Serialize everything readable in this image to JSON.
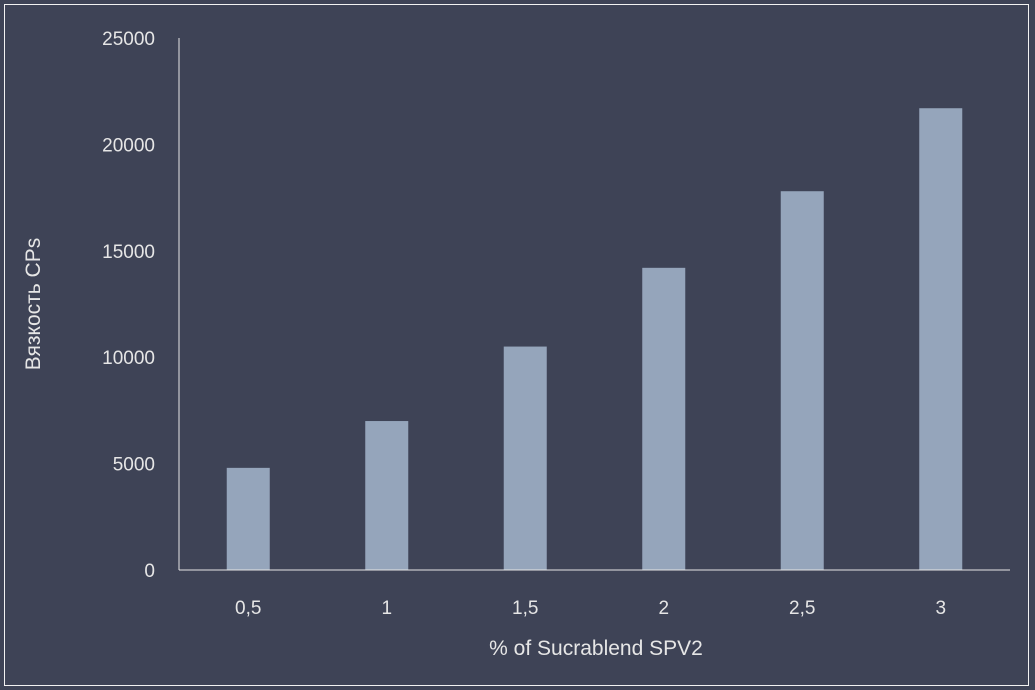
{
  "chart_data": {
    "type": "bar",
    "title": "",
    "categories": [
      "0,5",
      "1",
      "1,5",
      "2",
      "2,5",
      "3"
    ],
    "values": [
      4800,
      7000,
      10500,
      14200,
      17800,
      21700
    ],
    "xlabel": "% of Sucrablend SPV2",
    "ylabel": "Вязкость CPs",
    "ylim": [
      0,
      25000
    ],
    "yticks": [
      0,
      5000,
      10000,
      15000,
      20000,
      25000
    ],
    "ytick_labels": [
      "0",
      "5000",
      "10000",
      "15000",
      "20000",
      "25000"
    ],
    "grid": false,
    "legend": "none",
    "colors": {
      "background": "#3e4356",
      "bar": "#95a5bb",
      "axis": "#e6e6e6",
      "text": "#e6e6e6",
      "frame": "#f2f2f2"
    }
  }
}
